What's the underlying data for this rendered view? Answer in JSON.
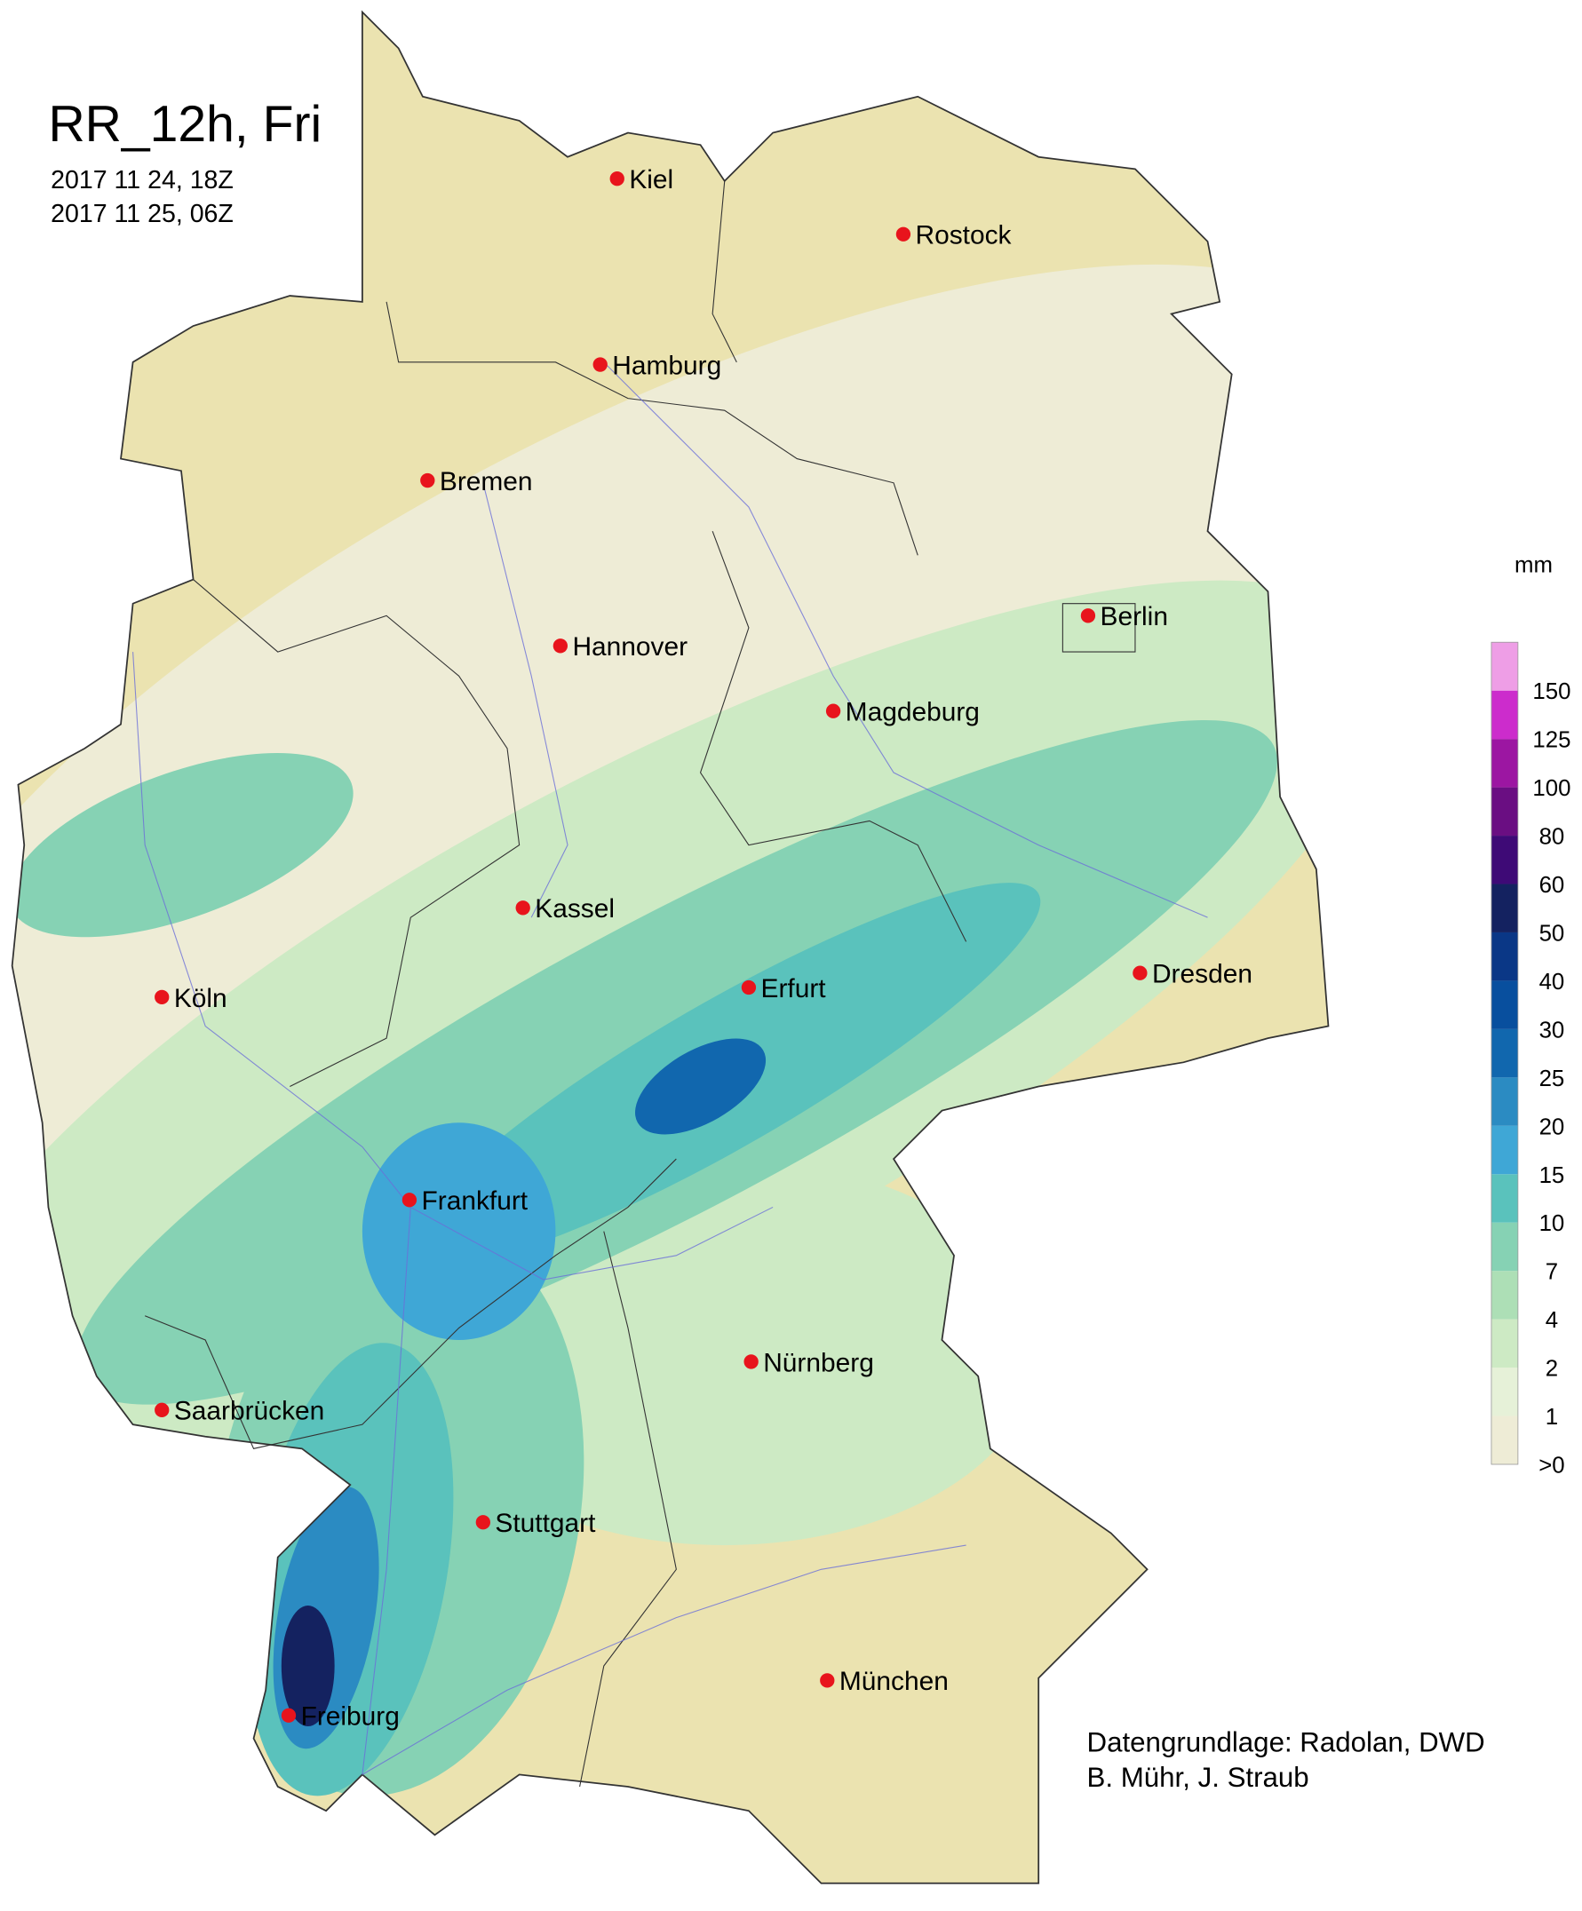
{
  "title": "RR_12h, Fri",
  "period": [
    "2017 11 24, 18Z",
    "2017 11 25, 06Z"
  ],
  "cities": [
    "Kiel",
    "Rostock",
    "Hamburg",
    "Bremen",
    "Berlin",
    "Hannover",
    "Magdeburg",
    "Kassel",
    "Köln",
    "Dresden",
    "Erfurt",
    "Frankfurt",
    "Nürnberg",
    "Saarbrücken",
    "Stuttgart",
    "München",
    "Freiburg"
  ],
  "legend": {
    "unit": "mm",
    "ticks": [
      {
        "value": 0,
        "label": ">0"
      },
      1,
      2,
      4,
      7,
      10,
      15,
      20,
      25,
      30,
      40,
      50,
      60,
      80,
      100,
      125,
      150
    ],
    "colors": [
      "#eeecd6",
      "#e6f1d8",
      "#cdeac4",
      "#addfb6",
      "#86d2b4",
      "#5ac2bc",
      "#3fa7d6",
      "#2b8bc2",
      "#1167ae",
      "#084f9e",
      "#0a3786",
      "#142260",
      "#3e0a76",
      "#6a0e82",
      "#9c16a2",
      "#cc2ccc",
      "#ee9ee6"
    ]
  },
  "credits": [
    "Datengrundlage: Radolan, DWD",
    "B. Mühr, J. Straub"
  ]
}
